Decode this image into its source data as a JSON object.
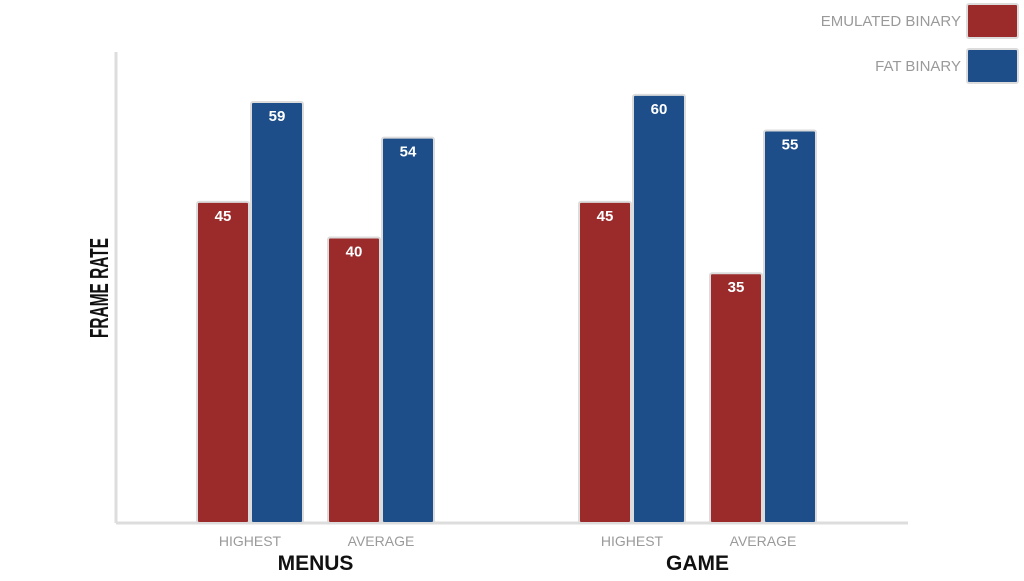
{
  "chart_data": {
    "type": "bar",
    "ylabel": "FRAME RATE",
    "groups": [
      {
        "label": "MENUS",
        "categories": [
          "HIGHEST",
          "AVERAGE"
        ]
      },
      {
        "label": "GAME",
        "categories": [
          "HIGHEST",
          "AVERAGE"
        ]
      }
    ],
    "series": [
      {
        "name": "EMULATED BINARY",
        "color": "#9B2B2B",
        "values": [
          45,
          40,
          45,
          35
        ]
      },
      {
        "name": "FAT BINARY",
        "color": "#1D4E89",
        "values": [
          59,
          54,
          60,
          55
        ]
      }
    ],
    "ylim": [
      0,
      66
    ],
    "grid": false,
    "legend_position": "top-right",
    "axis_color": "#dddddd",
    "tick_label_color": "#9a9a9a",
    "data_label_color": "#ffffff"
  }
}
